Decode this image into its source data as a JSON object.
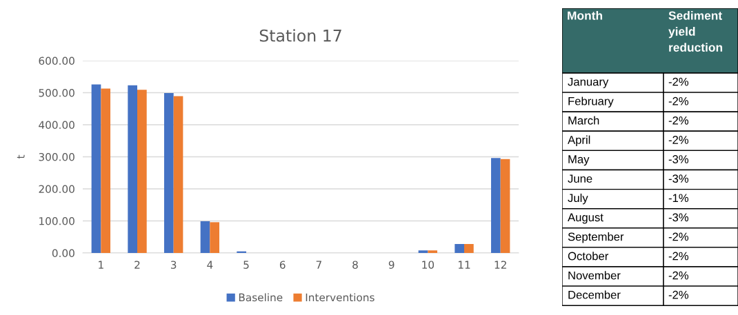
{
  "chart_data": [
    {
      "type": "bar",
      "title": "Station 17",
      "ylabel": "t",
      "categories": [
        "1",
        "2",
        "3",
        "4",
        "5",
        "6",
        "7",
        "8",
        "9",
        "10",
        "11",
        "12"
      ],
      "series": [
        {
          "name": "Baseline",
          "color": "#4472c4",
          "values": [
            526,
            523,
            499,
            99,
            5,
            0,
            0,
            0,
            0,
            8,
            28,
            296
          ]
        },
        {
          "name": "Interventions",
          "color": "#ed7d31",
          "values": [
            513,
            509,
            489,
            96,
            0,
            0,
            0,
            0,
            0,
            8,
            28,
            293
          ]
        }
      ],
      "ylim": [
        0,
        600
      ],
      "yticks": [
        {
          "value": 0,
          "label": "0.00"
        },
        {
          "value": 100,
          "label": "100.00"
        },
        {
          "value": 200,
          "label": "200.00"
        },
        {
          "value": 300,
          "label": "300.00"
        },
        {
          "value": 400,
          "label": "400.00"
        },
        {
          "value": 500,
          "label": "500.00"
        },
        {
          "value": 600,
          "label": "600.00"
        }
      ],
      "grid": "y",
      "legend": "bottom"
    },
    {
      "type": "other",
      "annotations": [
        "Month",
        "Sediment yield reduction"
      ],
      "categories": [
        "January",
        "February",
        "March",
        "April",
        "May",
        "June",
        "July",
        "August",
        "September",
        "October",
        "November",
        "December"
      ],
      "value_labels": [
        "-2%",
        "-2%",
        "-2%",
        "-2%",
        "-3%",
        "-3%",
        "-1%",
        "-3%",
        "-2%",
        "-2%",
        "-2%",
        "-2%"
      ]
    }
  ]
}
